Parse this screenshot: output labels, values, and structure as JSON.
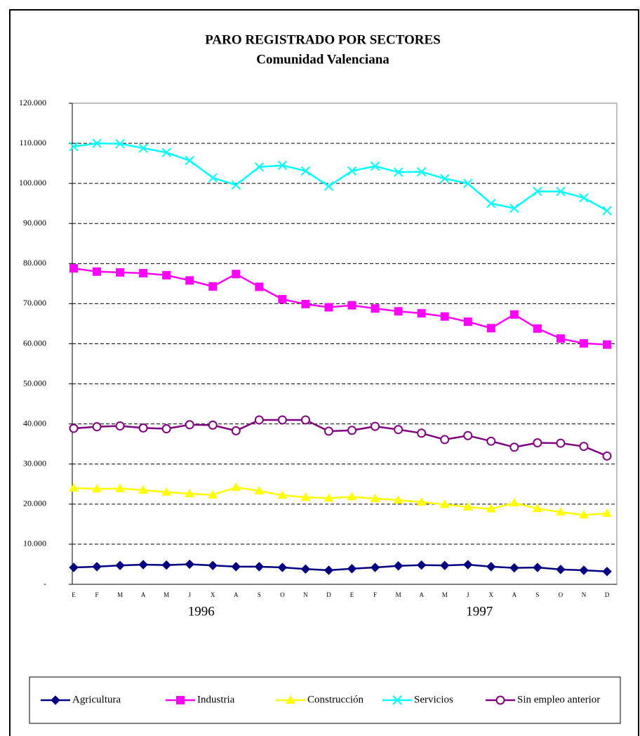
{
  "chart_data": {
    "type": "line",
    "title": "PARO REGISTRADO POR SECTORES",
    "subtitle": "Comunidad Valenciana",
    "categories": [
      "E",
      "F",
      "M",
      "A",
      "M",
      "J",
      "X",
      "A",
      "S",
      "O",
      "N",
      "D",
      "E",
      "F",
      "M",
      "A",
      "M",
      "J",
      "X",
      "A",
      "S",
      "O",
      "N",
      "D"
    ],
    "year_labels": [
      "1996",
      "1997"
    ],
    "ylim": [
      0,
      120000
    ],
    "yticks": [
      {
        "value": 0,
        "label": "-"
      },
      {
        "value": 10000,
        "label": "10.000"
      },
      {
        "value": 20000,
        "label": "20.000"
      },
      {
        "value": 30000,
        "label": "30.000"
      },
      {
        "value": 40000,
        "label": "40.000"
      },
      {
        "value": 50000,
        "label": "50.000"
      },
      {
        "value": 60000,
        "label": "60.000"
      },
      {
        "value": 70000,
        "label": "70.000"
      },
      {
        "value": 80000,
        "label": "80.000"
      },
      {
        "value": 90000,
        "label": "90.000"
      },
      {
        "value": 100000,
        "label": "100.000"
      },
      {
        "value": 110000,
        "label": "110.000"
      },
      {
        "value": 120000,
        "label": "120.000"
      }
    ],
    "grid": true,
    "legend": "bottom",
    "series": [
      {
        "name": "Agricultura",
        "color": "#000080",
        "marker": "diamond",
        "values": [
          4200,
          4400,
          4700,
          4900,
          4800,
          5000,
          4700,
          4400,
          4400,
          4200,
          3800,
          3500,
          3900,
          4200,
          4600,
          4800,
          4700,
          4900,
          4400,
          4100,
          4200,
          3700,
          3500,
          3200
        ]
      },
      {
        "name": "Industria",
        "color": "#ff00ff",
        "marker": "square",
        "values": [
          78800,
          78000,
          77800,
          77600,
          77100,
          75800,
          74300,
          77400,
          74200,
          71100,
          69900,
          69100,
          69600,
          68800,
          68100,
          67600,
          66800,
          65500,
          63900,
          67300,
          63800,
          61300,
          60100,
          59800
        ]
      },
      {
        "name": "Construcción",
        "color": "#ffff00",
        "marker": "triangle",
        "values": [
          24000,
          23800,
          23900,
          23500,
          23000,
          22600,
          22300,
          24200,
          23300,
          22200,
          21700,
          21500,
          21800,
          21400,
          21000,
          20500,
          19900,
          19300,
          18800,
          20300,
          18900,
          18000,
          17300,
          17700
        ]
      },
      {
        "name": "Servicios",
        "color": "#00ffff",
        "marker": "x",
        "values": [
          109200,
          110000,
          109900,
          108800,
          107700,
          105700,
          101400,
          99600,
          104100,
          104500,
          103100,
          99300,
          103100,
          104300,
          102800,
          102900,
          101200,
          100000,
          95000,
          93800,
          98000,
          98000,
          96400,
          93200
        ]
      },
      {
        "name": "Sin empleo anterior",
        "color": "#800080",
        "marker": "circle",
        "values": [
          38900,
          39300,
          39500,
          39000,
          38800,
          39800,
          39700,
          38300,
          41000,
          41000,
          41000,
          38200,
          38400,
          39400,
          38600,
          37700,
          36100,
          37100,
          35700,
          34200,
          35300,
          35200,
          34400,
          32000
        ]
      }
    ]
  }
}
